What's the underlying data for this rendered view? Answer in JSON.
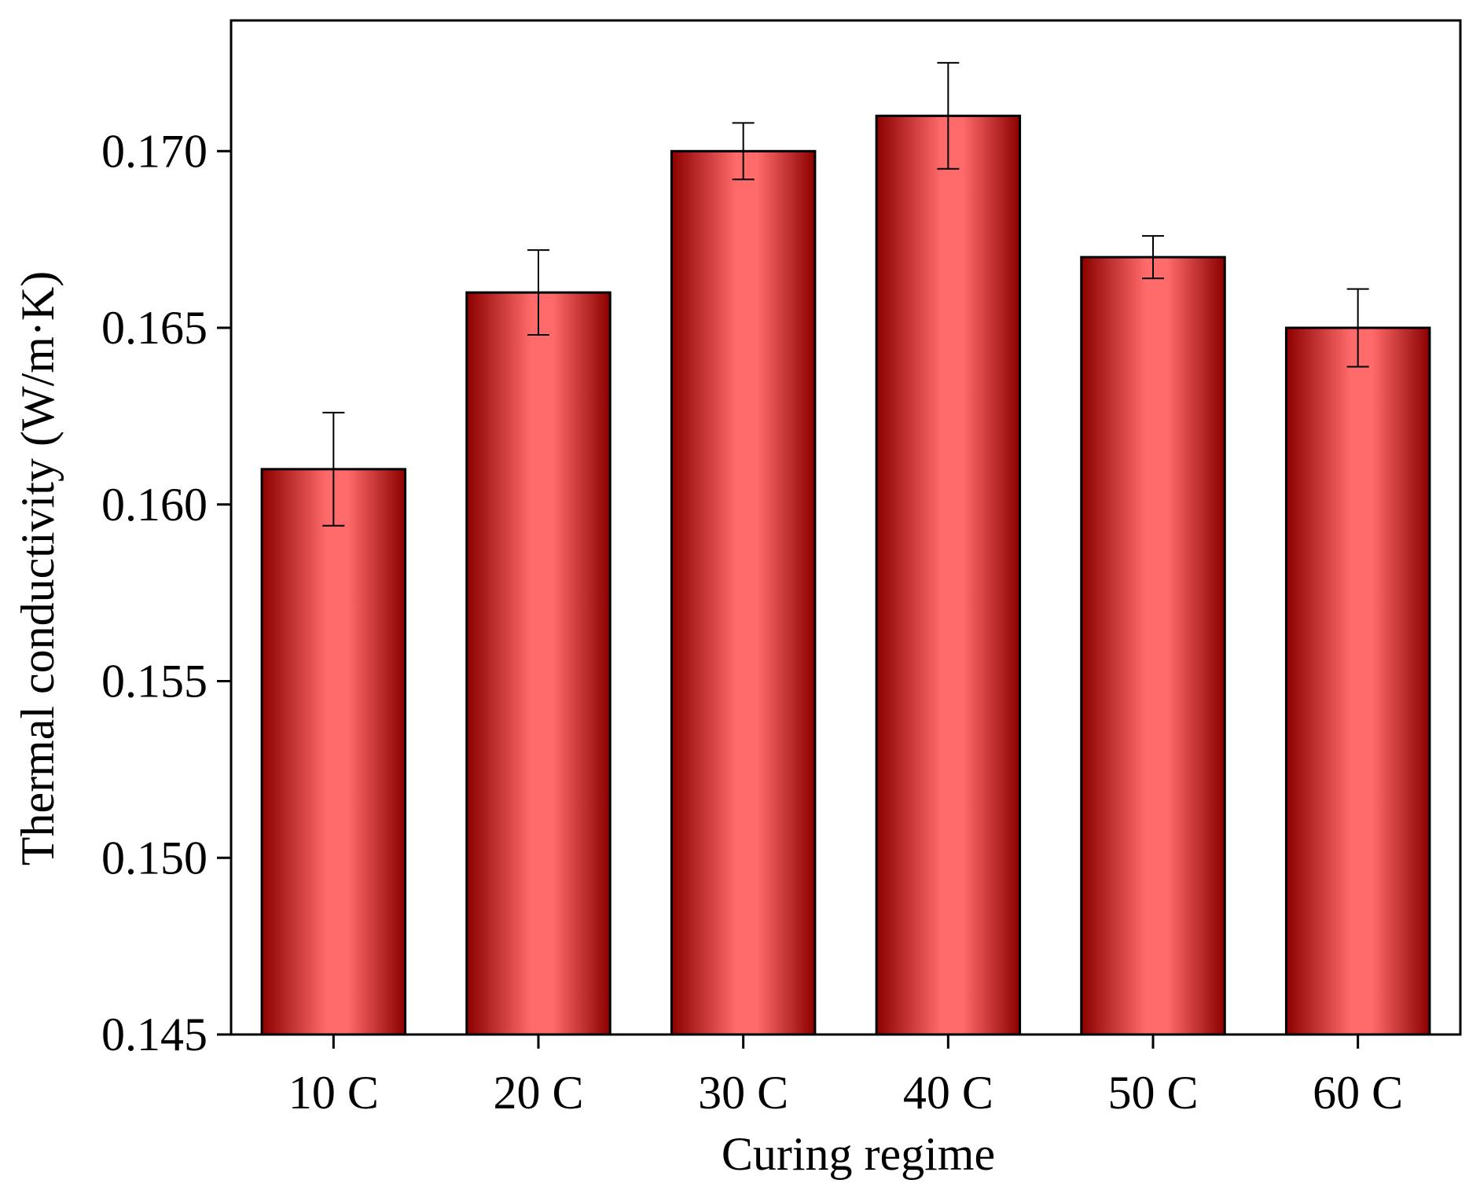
{
  "chart_data": {
    "type": "bar",
    "title": "",
    "xlabel": "Curing regime",
    "ylabel": "Thermal conductivity (W/m·K)",
    "categories": [
      "10 C",
      "20 C",
      "30 C",
      "40 C",
      "50 C",
      "60 C"
    ],
    "series": [
      {
        "values": [
          0.161,
          0.166,
          0.17,
          0.171,
          0.167,
          0.165
        ],
        "error": [
          0.0016,
          0.0012,
          0.0008,
          0.0015,
          0.0006,
          0.0011
        ]
      }
    ],
    "ylim": [
      0.145,
      0.1737
    ],
    "yticks": [
      0.145,
      0.15,
      0.155,
      0.16,
      0.165,
      0.17
    ],
    "ytick_labels": [
      "0.145",
      "0.150",
      "0.155",
      "0.160",
      "0.165",
      "0.170"
    ],
    "grid": false,
    "legend": "none",
    "colors": {
      "bar_edge": "#8b0000",
      "bar_center": "#ff6a6a",
      "bar_outline": "#000000",
      "axis": "#000000"
    }
  }
}
